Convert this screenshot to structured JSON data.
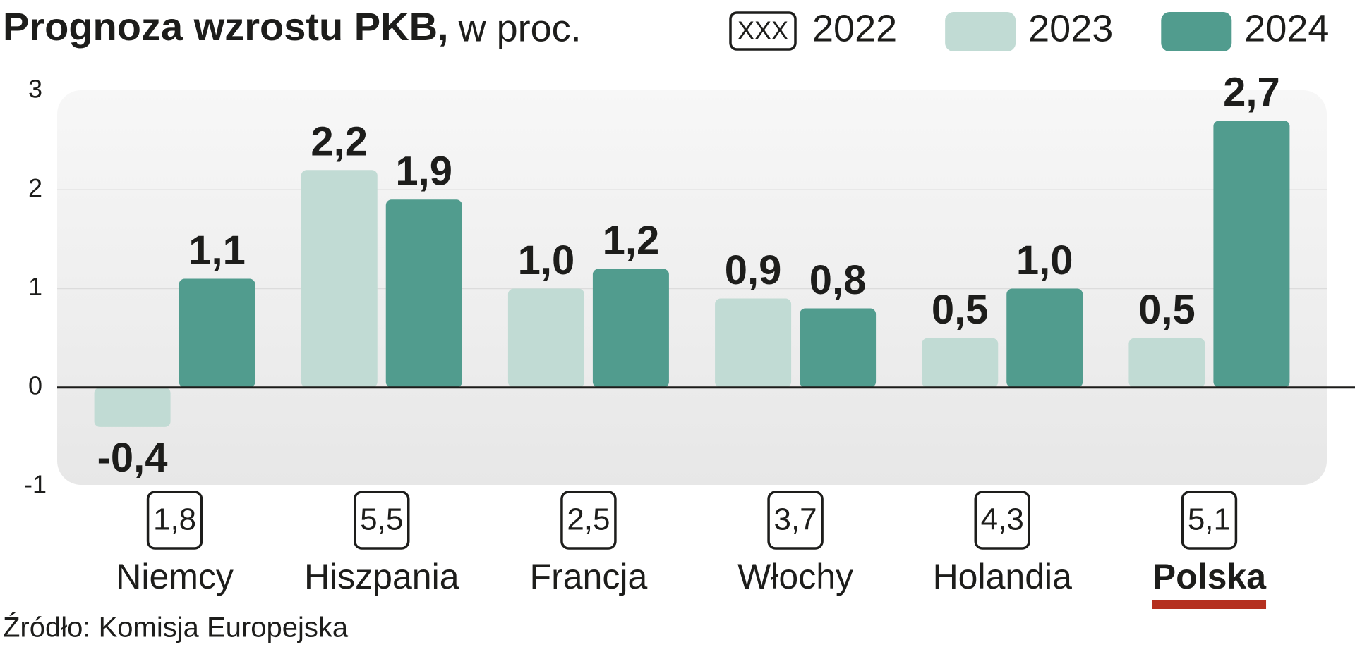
{
  "chart_data": {
    "type": "bar",
    "title": "Prognoza wzrostu PKB,",
    "subtitle": "w proc.",
    "source": "Źródło: Komisja Europejska",
    "categories": [
      "Niemcy",
      "Hiszpania",
      "Francja",
      "Włochy",
      "Holandia",
      "Polska"
    ],
    "highlight": "Polska",
    "highlight_color": "#b5301f",
    "series": [
      {
        "name": "2022",
        "marker_label": "XXX",
        "style": "box",
        "values": [
          1.8,
          5.5,
          2.5,
          3.7,
          4.3,
          5.1
        ],
        "value_labels": [
          "1,8",
          "5,5",
          "2,5",
          "3,7",
          "4,3",
          "5,1"
        ]
      },
      {
        "name": "2023",
        "color": "#c1dbd4",
        "values": [
          -0.4,
          2.2,
          1.0,
          0.9,
          0.5,
          0.5
        ],
        "value_labels": [
          "-0,4",
          "2,2",
          "1,0",
          "0,9",
          "0,5",
          "0,5"
        ]
      },
      {
        "name": "2024",
        "color": "#519c8e",
        "values": [
          1.1,
          1.9,
          1.2,
          0.8,
          1.0,
          2.7
        ],
        "value_labels": [
          "1,1",
          "1,9",
          "1,2",
          "0,8",
          "1,0",
          "2,7"
        ]
      }
    ],
    "ylim": [
      -1,
      3
    ],
    "yticks": [
      3,
      2,
      1,
      0,
      -1
    ],
    "grid": true
  }
}
